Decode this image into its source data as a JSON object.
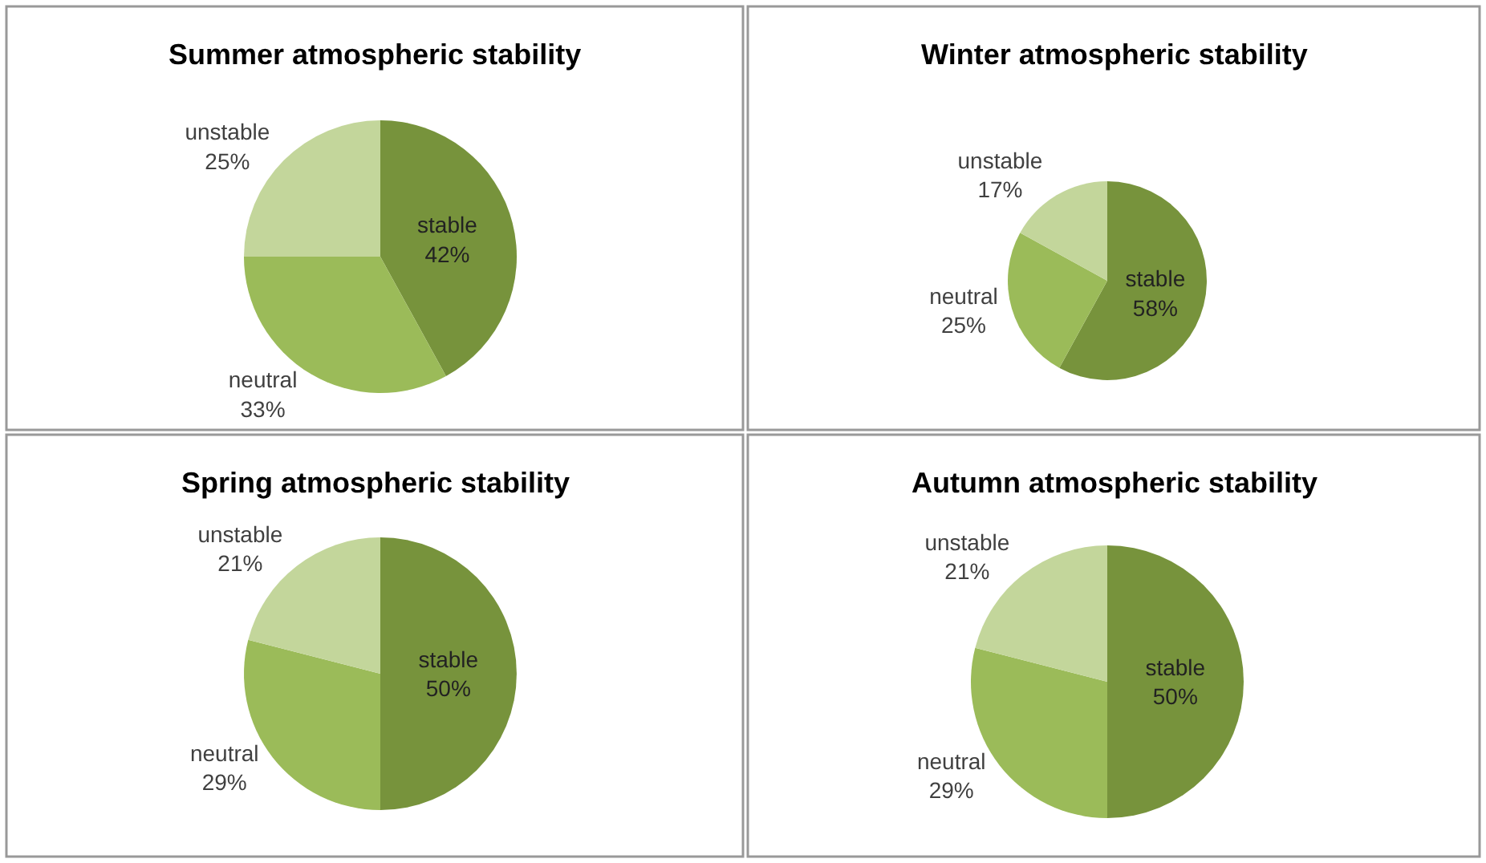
{
  "chart_data": [
    {
      "type": "pie",
      "title": "Summer atmospheric stability",
      "categories": [
        "stable",
        "neutral",
        "unstable"
      ],
      "values": [
        42,
        33,
        25
      ],
      "value_labels": [
        "42%",
        "33%",
        "25%"
      ],
      "colors": [
        "#77933c",
        "#9bbb59",
        "#c3d69b"
      ],
      "legend": false
    },
    {
      "type": "pie",
      "title": "Winter atmospheric stability",
      "categories": [
        "stable",
        "neutral",
        "unstable"
      ],
      "values": [
        58,
        25,
        17
      ],
      "value_labels": [
        "58%",
        "25%",
        "17%"
      ],
      "colors": [
        "#77933c",
        "#9bbb59",
        "#c3d69b"
      ],
      "legend": false
    },
    {
      "type": "pie",
      "title": "Spring atmospheric stability",
      "categories": [
        "stable",
        "neutral",
        "unstable"
      ],
      "values": [
        50,
        29,
        21
      ],
      "value_labels": [
        "50%",
        "29%",
        "21%"
      ],
      "colors": [
        "#77933c",
        "#9bbb59",
        "#c3d69b"
      ],
      "legend": false
    },
    {
      "type": "pie",
      "title": "Autumn atmospheric stability",
      "categories": [
        "stable",
        "neutral",
        "unstable"
      ],
      "values": [
        50,
        29,
        21
      ],
      "value_labels": [
        "50%",
        "29%",
        "21%"
      ],
      "colors": [
        "#77933c",
        "#9bbb59",
        "#c3d69b"
      ],
      "legend": false
    }
  ]
}
